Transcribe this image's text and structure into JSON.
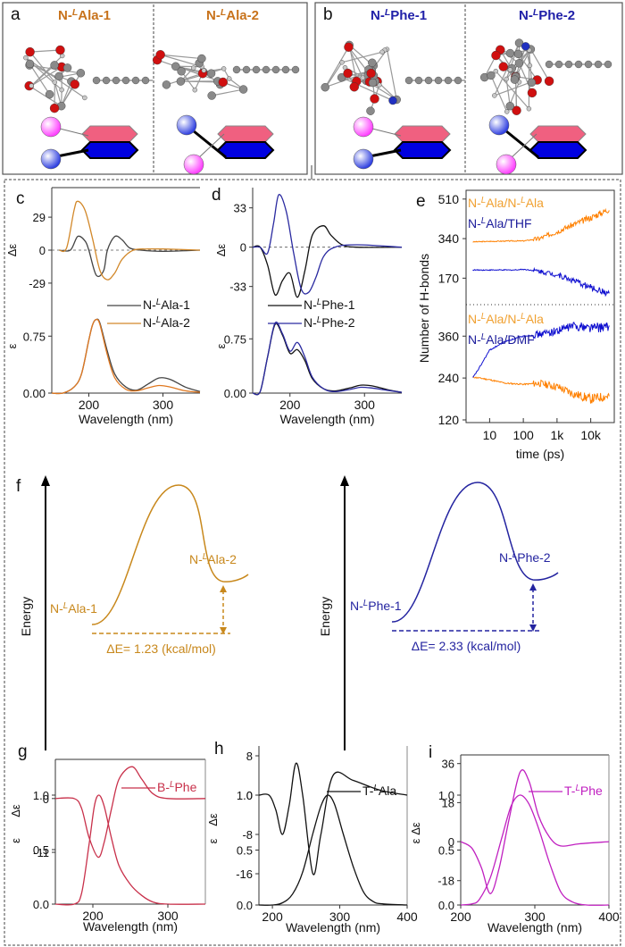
{
  "panels": {
    "a": {
      "letter": "a",
      "titles": [
        "N-ᴸAla-1",
        "N-ᴸAla-2"
      ],
      "title_prefix": "N-",
      "sup": "L",
      "suffixes": [
        "Ala-1",
        "Ala-2"
      ],
      "color": "#c8731c"
    },
    "b": {
      "letter": "b",
      "titles": [
        "N-ᴸPhe-1",
        "N-ᴸPhe-2"
      ],
      "title_prefix": "N-",
      "sup": "L",
      "suffixes": [
        "Phe-1",
        "Phe-2"
      ],
      "color": "#2020a8"
    }
  },
  "colors": {
    "ala": "#d2882a",
    "ala_dark": "#c06010",
    "phe": "#2a2aa0",
    "orange": "#ff8000",
    "blue": "#1010e0",
    "crimson": "#c8304a",
    "magenta": "#c020c0",
    "pink_ring": "#f06080",
    "blue_ring": "#0000e0",
    "pink_ball": "#ff40ff",
    "blue_ball": "#3040e0"
  },
  "energy": {
    "letter": "f",
    "ylabel": "Energy",
    "ala": {
      "left_label_prefix": "N-",
      "left_label_suffix": "Ala-1",
      "right_label_prefix": "N-",
      "right_label_suffix": "Ala-2",
      "sup": "L",
      "delta_label": "ΔE= 1.23 (kcal/mol)",
      "delta_value": 1.23,
      "unit": "kcal/mol"
    },
    "phe": {
      "left_label_prefix": "N-",
      "left_label_suffix": "Phe-1",
      "right_label_prefix": "N-",
      "right_label_suffix": "Phe-2",
      "sup": "L",
      "delta_label": "ΔE= 2.33 (kcal/mol)",
      "delta_value": 2.33,
      "unit": "kcal/mol"
    }
  },
  "chart_data": [
    {
      "id": "c",
      "letter": "c",
      "type": "line",
      "xlabel": "Wavelength (nm)",
      "xlim": [
        150,
        350
      ],
      "xticks": [
        200,
        300
      ],
      "top": {
        "ylabel": "Δε",
        "ylim": [
          -55,
          55
        ],
        "yticks": [
          29,
          0,
          -29
        ],
        "ytick_labels": [
          "29",
          "0",
          "-29"
        ],
        "series": [
          {
            "name": "N-ᴸAla-1",
            "color": "#444444",
            "x": [
              160,
              175,
              185,
              195,
              200,
              210,
              220,
              225,
              235,
              245,
              255,
              270,
              300,
              350
            ],
            "y": [
              0,
              0,
              12,
              8,
              0,
              -22,
              -18,
              0,
              12,
              9,
              2,
              0,
              -1,
              0
            ]
          },
          {
            "name": "N-ᴸAla-2",
            "color": "#d2882a",
            "x": [
              160,
              170,
              180,
              185,
              195,
              205,
              215,
              225,
              235,
              245,
              260,
              280,
              300,
              350
            ],
            "y": [
              0,
              2,
              35,
              43,
              35,
              10,
              -18,
              -26,
              -20,
              -8,
              0,
              1,
              1,
              0
            ]
          }
        ]
      },
      "bottom": {
        "ylabel": "ε",
        "ylim": [
          0,
          1.0
        ],
        "yticks": [
          0.75,
          0.0
        ],
        "ytick_labels": [
          "0.75",
          "0.00"
        ],
        "series": [
          {
            "name": "N-ᴸAla-1",
            "color": "#444444",
            "x": [
              150,
              165,
              180,
              190,
              200,
              205,
              210,
              215,
              225,
              235,
              250,
              265,
              280,
              295,
              310,
              330,
              350
            ],
            "y": [
              0,
              0,
              0.08,
              0.25,
              0.7,
              0.9,
              0.97,
              0.92,
              0.55,
              0.25,
              0.08,
              0.04,
              0.12,
              0.2,
              0.18,
              0.08,
              0.02
            ]
          },
          {
            "name": "N-ᴸAla-2",
            "color": "#e07820",
            "x": [
              150,
              165,
              180,
              190,
              200,
              205,
              210,
              215,
              225,
              235,
              250,
              265,
              280,
              295,
              310,
              330,
              350
            ],
            "y": [
              0,
              0,
              0.08,
              0.25,
              0.7,
              0.9,
              0.97,
              0.9,
              0.5,
              0.2,
              0.05,
              0.03,
              0.07,
              0.1,
              0.08,
              0.03,
              0.01
            ]
          }
        ]
      },
      "legend": [
        "N-ᴸAla-1",
        "N-ᴸAla-2"
      ]
    },
    {
      "id": "d",
      "letter": "d",
      "type": "line",
      "xlabel": "Wavelength (nm)",
      "xlim": [
        150,
        350
      ],
      "xticks": [
        200,
        300
      ],
      "top": {
        "ylabel": "Δε",
        "ylim": [
          -55,
          50
        ],
        "yticks": [
          33,
          0,
          -33
        ],
        "ytick_labels": [
          "33",
          "0",
          "-33"
        ],
        "series": [
          {
            "name": "N-ᴸPhe-1",
            "color": "#111111",
            "x": [
              150,
              160,
              170,
              180,
              190,
              200,
              210,
              220,
              230,
              245,
              255,
              270,
              290,
              350
            ],
            "y": [
              0,
              0,
              -15,
              -40,
              -28,
              -22,
              -42,
              -20,
              10,
              18,
              10,
              2,
              0,
              0
            ]
          },
          {
            "name": "N-ᴸPhe-2",
            "color": "#2a2aa0",
            "x": [
              150,
              160,
              170,
              178,
              185,
              195,
              205,
              215,
              225,
              235,
              245,
              260,
              290,
              350
            ],
            "y": [
              0,
              0,
              -5,
              20,
              44,
              30,
              -5,
              -35,
              -38,
              -25,
              -8,
              0,
              2,
              0
            ]
          }
        ]
      },
      "bottom": {
        "ylabel": "ε",
        "ylim": [
          0,
          1.05
        ],
        "yticks": [
          0.75,
          0.0
        ],
        "ytick_labels": [
          "0.75",
          "0.00"
        ],
        "series": [
          {
            "name": "N-ᴸPhe-1",
            "color": "#111111",
            "x": [
              150,
              160,
              170,
              180,
              190,
              200,
              210,
              220,
              230,
              245,
              260,
              280,
              295,
              310,
              330,
              350
            ],
            "y": [
              0,
              0.02,
              0.5,
              0.95,
              0.8,
              0.55,
              0.6,
              0.45,
              0.2,
              0.06,
              0.03,
              0.07,
              0.11,
              0.1,
              0.05,
              0.01
            ]
          },
          {
            "name": "N-ᴸPhe-2",
            "color": "#2a2aa0",
            "x": [
              150,
              160,
              170,
              180,
              190,
              200,
              210,
              220,
              230,
              245,
              260,
              280,
              295,
              310,
              330,
              350
            ],
            "y": [
              0,
              0.02,
              0.5,
              0.97,
              0.82,
              0.58,
              0.7,
              0.5,
              0.22,
              0.06,
              0.02,
              0.05,
              0.08,
              0.07,
              0.04,
              0.01
            ]
          }
        ]
      },
      "legend": [
        "N-ᴸPhe-1",
        "N-ᴸPhe-2"
      ]
    },
    {
      "id": "e",
      "letter": "e",
      "type": "line",
      "xlabel": "time (ps)",
      "xscale": "log",
      "xlim": [
        2,
        50000
      ],
      "xticks": [
        10,
        100,
        1000,
        10000
      ],
      "xtick_labels": [
        "10",
        "100",
        "1k",
        "10k"
      ],
      "ylabel": "Number of H-bonds",
      "top": {
        "ylim": [
          60,
          540
        ],
        "yticks": [
          510,
          340,
          170
        ],
        "ytick_labels": [
          "510",
          "340",
          "170"
        ],
        "series": [
          {
            "name": "N-ᴸAla/N-ᴸAla",
            "color": "#ff8000",
            "x": [
              2,
              10,
              50,
              100,
              300,
              1000,
              3000,
              10000,
              40000
            ],
            "y": [
              325,
              328,
              330,
              330,
              340,
              370,
              400,
              430,
              470
            ]
          },
          {
            "name": "N-ᴸAla/THF",
            "color": "#1010d0",
            "x": [
              2,
              10,
              50,
              100,
              300,
              1000,
              3000,
              10000,
              40000
            ],
            "y": [
              205,
              205,
              205,
              208,
              200,
              185,
              160,
              130,
              100
            ]
          }
        ],
        "legend": [
          "N-ᴸAla/N-ᴸAla",
          "N-ᴸAla/THF"
        ]
      },
      "bottom": {
        "ylim": [
          120,
          440
        ],
        "yticks": [
          360,
          240,
          120
        ],
        "ytick_labels": [
          "360",
          "240",
          "120"
        ],
        "series": [
          {
            "name": "N-ᴸAla/N-ᴸAla",
            "color": "#ff8000",
            "x": [
              2,
              5,
              10,
              30,
              100,
              300,
              1000,
              3000,
              10000,
              40000
            ],
            "y": [
              245,
              240,
              235,
              225,
              222,
              225,
              215,
              195,
              180,
              190
            ]
          },
          {
            "name": "N-ᴸAla/DMF",
            "color": "#1010d0",
            "x": [
              2,
              5,
              10,
              30,
              100,
              300,
              1000,
              3000,
              10000,
              40000
            ],
            "y": [
              210,
              270,
              320,
              345,
              360,
              365,
              375,
              390,
              385,
              385
            ]
          }
        ],
        "legend": [
          "N-ᴸAla/N-ᴸAla",
          "N-ᴸAla/DMF"
        ]
      }
    },
    {
      "id": "g",
      "letter": "g",
      "type": "line",
      "xlabel": "Wavelength (nm)",
      "xlim": [
        150,
        350
      ],
      "xticks": [
        200,
        300
      ],
      "top": {
        "ylabel": "Δε",
        "ylim": [
          -13,
          8
        ],
        "yticks": [
          0,
          -11
        ],
        "ytick_labels": [
          "0",
          "-11"
        ],
        "series": [
          {
            "name": "B-ᴸPhe",
            "color": "#c8304a",
            "x": [
              150,
              175,
              185,
              195,
              207,
              215,
              225,
              235,
              252,
              265,
              280,
              300,
              350
            ],
            "y": [
              0,
              0,
              -2,
              -8,
              -12,
              -9,
              -2,
              4,
              6.5,
              4,
              1,
              0,
              0
            ]
          }
        ]
      },
      "bottom": {
        "ylabel": "ε",
        "ylim": [
          0,
          1.0
        ],
        "yticks": [
          1.0,
          0.5,
          0.0
        ],
        "ytick_labels": [
          "1.0",
          "0.5",
          "0.0"
        ],
        "series": [
          {
            "name": "B-ᴸPhe",
            "color": "#c8304a",
            "x": [
              150,
              175,
              185,
              195,
              202,
              208,
              215,
              225,
              235,
              250,
              265,
              280,
              300,
              350
            ],
            "y": [
              0,
              0,
              0.1,
              0.55,
              0.9,
              1.0,
              0.9,
              0.6,
              0.35,
              0.18,
              0.08,
              0.02,
              0,
              0
            ]
          }
        ]
      },
      "legend": [
        "B-ᴸPhe"
      ]
    },
    {
      "id": "h",
      "letter": "h",
      "type": "line",
      "xlabel": "Wavelength (nm)",
      "xlim": [
        180,
        400
      ],
      "xticks": [
        200,
        300,
        400
      ],
      "top": {
        "ylabel": "Δε",
        "ylim": [
          -20,
          10
        ],
        "yticks": [
          8,
          0,
          -8,
          -16
        ],
        "ytick_labels": [
          "8",
          "0",
          "-8",
          "-16"
        ],
        "series": [
          {
            "name": "T-ᴸAla",
            "color": "#111111",
            "x": [
              180,
              195,
              205,
              215,
              225,
              235,
              245,
              260,
              272,
              290,
              320,
              360,
              400
            ],
            "y": [
              0,
              0,
              -3,
              -8,
              -2,
              6.5,
              0,
              -16,
              -8,
              4,
              3,
              1,
              0
            ]
          }
        ]
      },
      "bottom": {
        "ylabel": "ε",
        "ylim": [
          0,
          1.0
        ],
        "yticks": [
          1.0,
          0.5,
          0.0
        ],
        "ytick_labels": [
          "1.0",
          "0.5",
          "0.0"
        ],
        "series": [
          {
            "name": "T-ᴸAla",
            "color": "#111111",
            "x": [
              180,
              200,
              215,
              230,
              245,
              260,
              272,
              282,
              292,
              305,
              320,
              335,
              350,
              365,
              400
            ],
            "y": [
              0,
              0,
              0.02,
              0.1,
              0.3,
              0.65,
              0.9,
              1.0,
              0.92,
              0.65,
              0.35,
              0.12,
              0.03,
              0.01,
              0
            ]
          }
        ]
      },
      "legend": [
        "T-ᴸAla"
      ]
    },
    {
      "id": "i",
      "letter": "i",
      "type": "line",
      "xlabel": "Wavelength (nm)",
      "xlim": [
        200,
        400
      ],
      "xticks": [
        200,
        300,
        400
      ],
      "top": {
        "ylabel": "Δε",
        "ylim": [
          -28,
          40
        ],
        "yticks": [
          36,
          18,
          0,
          -18
        ],
        "ytick_labels": [
          "36",
          "18",
          "0",
          "-18"
        ],
        "series": [
          {
            "name": "T-ᴸPhe",
            "color": "#c020c0",
            "x": [
              200,
              215,
              228,
              240,
              252,
              265,
              280,
              292,
              305,
              320,
              335,
              360,
              400
            ],
            "y": [
              0,
              -3,
              -12,
              -24,
              -12,
              10,
              32,
              28,
              12,
              2,
              -2,
              -1,
              0
            ]
          }
        ]
      },
      "bottom": {
        "ylabel": "ε",
        "ylim": [
          0,
          1.0
        ],
        "yticks": [
          1.0,
          0.5,
          0.0
        ],
        "ytick_labels": [
          "1.0",
          "0.5",
          "0.0"
        ],
        "series": [
          {
            "name": "T-ᴸPhe",
            "color": "#c020c0",
            "x": [
              200,
              215,
              225,
              240,
              255,
              268,
              280,
              292,
              305,
              320,
              335,
              350,
              370,
              400
            ],
            "y": [
              0,
              0.01,
              0.05,
              0.25,
              0.6,
              0.9,
              1.0,
              0.92,
              0.7,
              0.38,
              0.12,
              0.03,
              0,
              0
            ]
          }
        ]
      },
      "legend": [
        "T-ᴸPhe"
      ]
    }
  ]
}
